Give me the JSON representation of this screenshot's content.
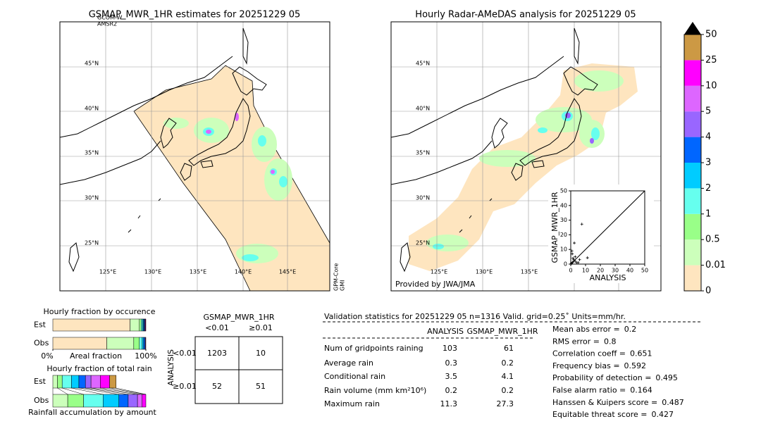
{
  "left_map": {
    "title": "GSMAP_MWR_1HR estimates for 20251229 05",
    "sensor_top": [
      "GCOM-W",
      "AMSR2"
    ],
    "sensor_side": [
      "GPM-Core",
      "GMI"
    ],
    "lat_labels": [
      "45°N",
      "40°N",
      "35°N",
      "30°N",
      "25°N"
    ],
    "lon_labels": [
      "125°E",
      "130°E",
      "135°E",
      "140°E",
      "145°E"
    ]
  },
  "right_map": {
    "title": "Hourly Radar-AMeDAS analysis for 20251229 05",
    "credit": "Provided by JWA/JMA",
    "lat_labels": [
      "45°N",
      "40°N",
      "35°N",
      "30°N",
      "25°N"
    ],
    "lon_labels": [
      "125°E",
      "130°E",
      "135°E"
    ]
  },
  "colorbar": {
    "ticks": [
      0,
      0.01,
      0.5,
      1,
      2,
      3,
      4,
      5,
      10,
      25,
      50
    ],
    "colors": [
      "#fee5bf",
      "#ccffbb",
      "#99ff88",
      "#66ffee",
      "#00ccff",
      "#0066ff",
      "#9966ff",
      "#dd66ff",
      "#ff00ff",
      "#cc9944"
    ],
    "extend_color": "#000000"
  },
  "chart_data": [
    {
      "type": "scatter",
      "xlabel": "ANALYSIS",
      "ylabel": "GSMAP_MWR_1HR",
      "xlim": [
        0,
        50
      ],
      "ylim": [
        0,
        50
      ],
      "xticks": [
        0,
        10,
        20,
        30,
        40,
        50
      ],
      "yticks": [
        0,
        10,
        20,
        30,
        40,
        50
      ],
      "color": "#000000",
      "x": [
        7.5,
        2.4,
        11.3,
        1,
        2,
        3,
        1,
        2,
        4,
        0.5,
        3,
        5,
        6,
        1.5,
        0.8
      ],
      "y": [
        27.3,
        14.4,
        4.3,
        1,
        3,
        5,
        7,
        2,
        1,
        0.5,
        2,
        1,
        3,
        4,
        9
      ]
    },
    {
      "type": "bar",
      "title": "Hourly fraction by occurence",
      "xlabel": "Areal fraction",
      "categories": [
        "Est",
        "Obs"
      ],
      "xlim": [
        0,
        100
      ],
      "xticks": [
        {
          "value": 0,
          "label": "0%"
        },
        {
          "value": 100,
          "label": "100%"
        }
      ],
      "series": [
        {
          "color": "#fee5bf",
          "values": [
            83,
            58
          ]
        },
        {
          "color": "#ccffbb",
          "values": [
            10,
            29
          ]
        },
        {
          "color": "#99ff88",
          "values": [
            2,
            6
          ]
        },
        {
          "color": "#66ffee",
          "values": [
            1.5,
            3
          ]
        },
        {
          "color": "#00ccff",
          "values": [
            1,
            1.5
          ]
        },
        {
          "color": "#0066ff",
          "values": [
            1,
            1.5
          ]
        },
        {
          "color": "#9966ff",
          "values": [
            0.5,
            0.5
          ]
        },
        {
          "color": "#dd66ff",
          "values": [
            0.5,
            0.5
          ]
        },
        {
          "color": "#ff00ff",
          "values": [
            0.5,
            0
          ]
        },
        {
          "color": "#cc9944",
          "values": [
            0,
            0
          ]
        }
      ]
    },
    {
      "type": "bar",
      "title": "Hourly fraction of total rain",
      "xlabel": "Rainfall accumulation by amount",
      "categories": [
        "Est",
        "Obs"
      ],
      "xlim": [
        0,
        100
      ],
      "series": [
        {
          "color": "#ccffbb",
          "values": [
            5,
            16
          ]
        },
        {
          "color": "#99ff88",
          "values": [
            5,
            17
          ]
        },
        {
          "color": "#66ffee",
          "values": [
            10,
            21
          ]
        },
        {
          "color": "#00ccff",
          "values": [
            8,
            17
          ]
        },
        {
          "color": "#0066ff",
          "values": [
            7,
            10
          ]
        },
        {
          "color": "#9966ff",
          "values": [
            6,
            10
          ]
        },
        {
          "color": "#dd66ff",
          "values": [
            10,
            5
          ]
        },
        {
          "color": "#ff00ff",
          "values": [
            10,
            4
          ]
        },
        {
          "color": "#cc9944",
          "values": [
            7,
            0
          ]
        }
      ]
    }
  ],
  "contingency": {
    "title": "GSMAP_MWR_1HR",
    "col_labels": [
      "<0.01",
      "≥0.01"
    ],
    "row_title": "ANALYSIS",
    "row_labels": [
      "<0.01",
      "≥0.01"
    ],
    "cells": [
      [
        1203,
        10
      ],
      [
        52,
        51
      ]
    ]
  },
  "validation": {
    "header": "Validation statistics for 20251229 05  n=1316 Valid. grid=0.25˚ Units=mm/hr.",
    "columns": [
      "ANALYSIS",
      "GSMAP_MWR_1HR"
    ],
    "rows": [
      {
        "label": "Num of gridpoints raining",
        "values": [
          103,
          61
        ]
      },
      {
        "label": "Average rain",
        "values": [
          0.3,
          0.2
        ]
      },
      {
        "label": "Conditional rain",
        "values": [
          3.5,
          4.1
        ]
      },
      {
        "label": "Rain volume (mm km²10⁶)",
        "values": [
          0.2,
          0.2
        ]
      },
      {
        "label": "Maximum rain",
        "values": [
          11.3,
          27.3
        ]
      }
    ],
    "scores": [
      {
        "label": "Mean abs error =",
        "value": 0.2
      },
      {
        "label": "RMS error =",
        "value": 0.8
      },
      {
        "label": "Correlation coeff =",
        "value": 0.651
      },
      {
        "label": "Frequency bias =",
        "value": 0.592
      },
      {
        "label": "Probability of detection =",
        "value": 0.495
      },
      {
        "label": "False alarm ratio =",
        "value": 0.164
      },
      {
        "label": "Hanssen & Kuipers score =",
        "value": 0.487
      },
      {
        "label": "Equitable threat score =",
        "value": 0.427
      }
    ]
  }
}
